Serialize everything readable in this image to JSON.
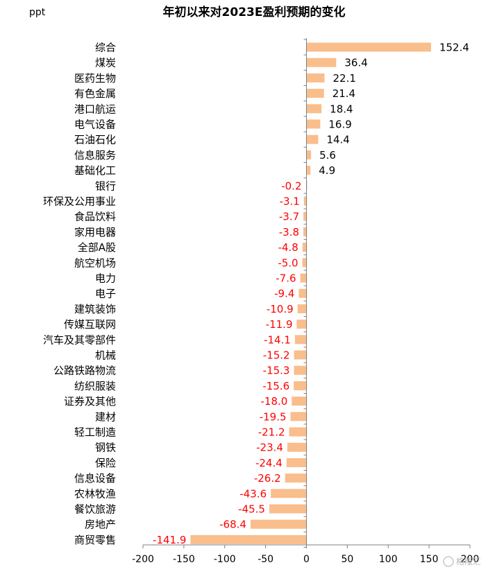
{
  "chart_data": {
    "type": "bar",
    "orientation": "horizontal",
    "title": "年初以来对2023E盈利预期的变化",
    "unit_label": "ppt",
    "categories": [
      "综合",
      "煤炭",
      "医药生物",
      "有色金属",
      "港口航运",
      "电气设备",
      "石油石化",
      "信息服务",
      "基础化工",
      "银行",
      "环保及公用事业",
      "食品饮料",
      "家用电器",
      "全部A股",
      "航空机场",
      "电力",
      "电子",
      "建筑装饰",
      "传媒互联网",
      "汽车及其零部件",
      "机械",
      "公路铁路物流",
      "纺织服装",
      "证券及其他",
      "建材",
      "轻工制造",
      "钢铁",
      "保险",
      "信息设备",
      "农林牧渔",
      "餐饮旅游",
      "房地产",
      "商贸零售"
    ],
    "values": [
      152.4,
      36.4,
      22.1,
      21.4,
      18.4,
      16.9,
      14.4,
      5.6,
      4.9,
      -0.2,
      -3.1,
      -3.7,
      -3.8,
      -4.8,
      -5.0,
      -7.6,
      -9.4,
      -10.9,
      -11.9,
      -14.1,
      -15.2,
      -15.3,
      -15.6,
      -18.0,
      -19.5,
      -21.2,
      -23.4,
      -24.4,
      -26.2,
      -43.6,
      -45.5,
      -68.4,
      -141.9
    ],
    "value_labels": [
      "152.4",
      "36.4",
      "22.1",
      "21.4",
      "18.4",
      "16.9",
      "14.4",
      "5.6",
      "4.9",
      "-0.2",
      "-3.1",
      "-3.7",
      "-3.8",
      "-4.8",
      "-5.0",
      "-7.6",
      "-9.4",
      "-10.9",
      "-11.9",
      "-14.1",
      "-15.2",
      "-15.3",
      "-15.6",
      "-18.0",
      "-19.5",
      "-21.2",
      "-23.4",
      "-24.4",
      "-26.2",
      "-43.6",
      "-45.5",
      "-68.4",
      "-141.9"
    ],
    "xlim": [
      -200,
      200
    ],
    "xticks": [
      -200,
      -150,
      -100,
      -50,
      0,
      50,
      100,
      150,
      200
    ],
    "xtick_labels": [
      "-200",
      "-150",
      "-100",
      "-50",
      "0",
      "50",
      "100",
      "150",
      "200"
    ],
    "grid": false,
    "colors": {
      "bar": "#F9BE8C",
      "positive_label": "#000000",
      "negative_label": "#FF0000",
      "axis": "#7f7f7f"
    }
  },
  "watermark": "格隆汇"
}
